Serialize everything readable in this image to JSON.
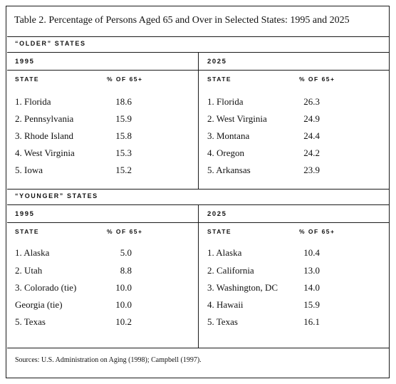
{
  "title": "Table 2. Percentage of Persons Aged 65 and Over in Selected States: 1995 and 2025",
  "sections": [
    {
      "label": "“OLDER” STATES",
      "left": {
        "year": "1995",
        "col_state": "STATE",
        "col_pct": "% OF 65+",
        "rows": [
          {
            "state": "1. Florida",
            "pct": "18.6"
          },
          {
            "state": "2. Pennsylvania",
            "pct": "15.9"
          },
          {
            "state": "3. Rhode Island",
            "pct": "15.8"
          },
          {
            "state": "4. West Virginia",
            "pct": "15.3"
          },
          {
            "state": "5. Iowa",
            "pct": "15.2"
          }
        ]
      },
      "right": {
        "year": "2025",
        "col_state": "STATE",
        "col_pct": "% OF 65+",
        "rows": [
          {
            "state": "1. Florida",
            "pct": "26.3"
          },
          {
            "state": "2. West Virginia",
            "pct": "24.9"
          },
          {
            "state": "3. Montana",
            "pct": "24.4"
          },
          {
            "state": "4. Oregon",
            "pct": "24.2"
          },
          {
            "state": "5. Arkansas",
            "pct": "23.9"
          }
        ]
      }
    },
    {
      "label": "“YOUNGER” STATES",
      "left": {
        "year": "1995",
        "col_state": "STATE",
        "col_pct": "% OF 65+",
        "rows": [
          {
            "state": "1. Alaska",
            "pct": "5.0"
          },
          {
            "state": "2. Utah",
            "pct": "8.8"
          },
          {
            "state": "3. Colorado (tie)",
            "pct": "10.0"
          },
          {
            "state": "Georgia (tie)",
            "pct": "10.0"
          },
          {
            "state": "5. Texas",
            "pct": "10.2"
          }
        ]
      },
      "right": {
        "year": "2025",
        "col_state": "STATE",
        "col_pct": "% OF 65+",
        "rows": [
          {
            "state": "1. Alaska",
            "pct": "10.4"
          },
          {
            "state": "2. California",
            "pct": "13.0"
          },
          {
            "state": "3. Washington, DC",
            "pct": "14.0"
          },
          {
            "state": "4. Hawaii",
            "pct": "15.9"
          },
          {
            "state": "5. Texas",
            "pct": "16.1"
          }
        ]
      }
    }
  ],
  "footer": "Sources: U.S. Administration on Aging (1998); Campbell (1997)."
}
